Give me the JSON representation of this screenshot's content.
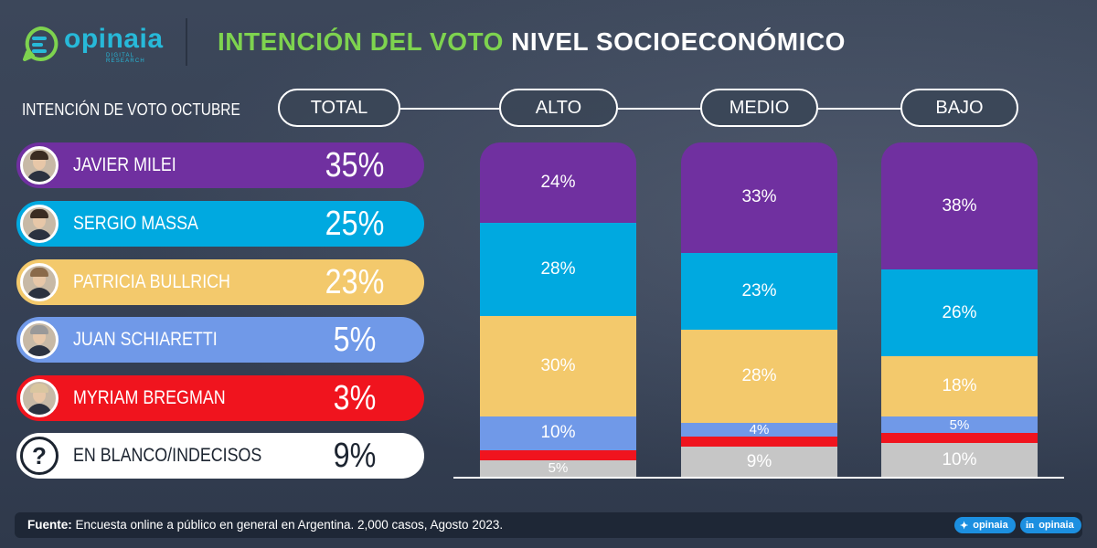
{
  "header": {
    "brand": "opinaia",
    "brand_tag": "DIGITAL RESEARCH",
    "title_part1": "INTENCIÓN DEL VOTO",
    "title_part2": "NIVEL SOCIOECONÓMICO"
  },
  "subtitle": "INTENCIÓN DE VOTO OCTUBRE",
  "groups": [
    "TOTAL",
    "ALTO",
    "MEDIO",
    "BAJO"
  ],
  "candidates": [
    {
      "name": "JAVIER MILEI",
      "total": "35%",
      "color": "#7030a0",
      "icon": "avatar-photo"
    },
    {
      "name": "SERGIO MASSA",
      "total": "25%",
      "color": "#00a9e0",
      "icon": "avatar-photo"
    },
    {
      "name": "PATRICIA BULLRICH",
      "total": "23%",
      "color": "#f3c96c",
      "icon": "avatar-photo"
    },
    {
      "name": "JUAN SCHIARETTI",
      "total": "5%",
      "color": "#7099e8",
      "icon": "avatar-photo"
    },
    {
      "name": "MYRIAM BREGMAN",
      "total": "3%",
      "color": "#f0141e",
      "icon": "avatar-photo"
    },
    {
      "name": "EN BLANCO/INDECISOS",
      "total": "9%",
      "color": "#ffffff",
      "icon": "question-icon"
    }
  ],
  "chart_data": {
    "type": "bar",
    "stacked": true,
    "categories": [
      "ALTO",
      "MEDIO",
      "BAJO"
    ],
    "series": [
      {
        "name": "JAVIER MILEI",
        "color": "#7030a0",
        "values": [
          24,
          33,
          38
        ],
        "labels": [
          "24%",
          "33%",
          "38%"
        ]
      },
      {
        "name": "SERGIO MASSA",
        "color": "#00a9e0",
        "values": [
          28,
          23,
          26
        ],
        "labels": [
          "28%",
          "23%",
          "26%"
        ]
      },
      {
        "name": "PATRICIA BULLRICH",
        "color": "#f3c96c",
        "values": [
          30,
          28,
          18
        ],
        "labels": [
          "30%",
          "28%",
          "18%"
        ]
      },
      {
        "name": "JUAN SCHIARETTI",
        "color": "#7099e8",
        "values": [
          10,
          4,
          5
        ],
        "labels": [
          "10%",
          "4%",
          "5%"
        ]
      },
      {
        "name": "MYRIAM BREGMAN",
        "color": "#f0141e",
        "values": [
          3,
          3,
          3
        ],
        "labels": [
          "",
          "",
          ""
        ]
      },
      {
        "name": "EN BLANCO/INDECISOS",
        "color": "#c6c6c6",
        "values": [
          5,
          9,
          10
        ],
        "labels": [
          "5%",
          "9%",
          "10%"
        ]
      }
    ],
    "totals": {
      "values": [
        35,
        25,
        23,
        5,
        3,
        9
      ]
    },
    "ylim": [
      0,
      100
    ],
    "legend": "left"
  },
  "footer": {
    "source_label": "Fuente:",
    "source_text": " Encuesta online a público en general en Argentina. 2,000 casos, Agosto 2023.",
    "twitter": "opinaia",
    "linkedin": "opinaia"
  }
}
